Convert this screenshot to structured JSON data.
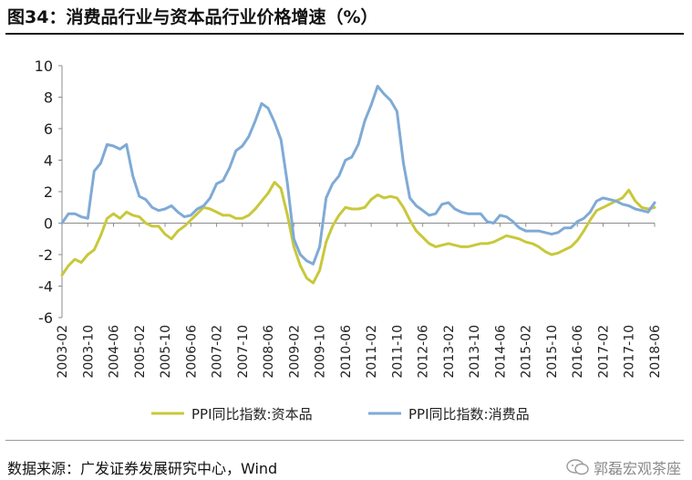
{
  "header": {
    "title": "图34：消费品行业与资本品行业价格增速（%）"
  },
  "footer": {
    "source": "数据来源：广发证券发展研究中心，Wind",
    "watermark": "郭磊宏观茶座",
    "watermark_icon": "wechat-icon"
  },
  "colors": {
    "capital": "#C8C83C",
    "consumer": "#7FAAD6",
    "axis": "#8C8C8C",
    "text": "#222222"
  },
  "chart_data": {
    "type": "line",
    "title": "",
    "xlabel": "",
    "ylabel": "",
    "ylim": [
      -6,
      10
    ],
    "yticks": [
      -6,
      -4,
      -2,
      0,
      2,
      4,
      6,
      8,
      10
    ],
    "grid": false,
    "legend": "bottom-center",
    "x_start": "2003-02",
    "x_end": "2018-06",
    "xticks": [
      "2003-02",
      "2003-10",
      "2004-06",
      "2005-02",
      "2005-10",
      "2006-06",
      "2007-02",
      "2007-10",
      "2008-06",
      "2009-02",
      "2009-10",
      "2010-06",
      "2011-02",
      "2011-10",
      "2012-06",
      "2013-02",
      "2013-10",
      "2014-06",
      "2015-02",
      "2015-10",
      "2016-06",
      "2017-02",
      "2017-10",
      "2018-06"
    ],
    "series": [
      {
        "name": "PPI同比指数:资本品",
        "color": "#C8C83C",
        "points": [
          [
            "2003-02",
            -3.3
          ],
          [
            "2003-04",
            -2.7
          ],
          [
            "2003-06",
            -2.3
          ],
          [
            "2003-08",
            -2.5
          ],
          [
            "2003-10",
            -2.0
          ],
          [
            "2003-12",
            -1.7
          ],
          [
            "2004-02",
            -0.8
          ],
          [
            "2004-04",
            0.3
          ],
          [
            "2004-06",
            0.6
          ],
          [
            "2004-08",
            0.3
          ],
          [
            "2004-10",
            0.7
          ],
          [
            "2004-12",
            0.5
          ],
          [
            "2005-02",
            0.4
          ],
          [
            "2005-04",
            0.0
          ],
          [
            "2005-06",
            -0.2
          ],
          [
            "2005-08",
            -0.2
          ],
          [
            "2005-10",
            -0.7
          ],
          [
            "2005-12",
            -1.0
          ],
          [
            "2006-02",
            -0.5
          ],
          [
            "2006-04",
            -0.2
          ],
          [
            "2006-06",
            0.2
          ],
          [
            "2006-08",
            0.6
          ],
          [
            "2006-10",
            1.0
          ],
          [
            "2006-12",
            0.9
          ],
          [
            "2007-02",
            0.7
          ],
          [
            "2007-04",
            0.5
          ],
          [
            "2007-06",
            0.5
          ],
          [
            "2007-08",
            0.3
          ],
          [
            "2007-10",
            0.3
          ],
          [
            "2007-12",
            0.5
          ],
          [
            "2008-02",
            0.9
          ],
          [
            "2008-04",
            1.4
          ],
          [
            "2008-06",
            1.9
          ],
          [
            "2008-08",
            2.6
          ],
          [
            "2008-10",
            2.2
          ],
          [
            "2008-12",
            0.5
          ],
          [
            "2009-02",
            -1.5
          ],
          [
            "2009-04",
            -2.7
          ],
          [
            "2009-06",
            -3.5
          ],
          [
            "2009-08",
            -3.8
          ],
          [
            "2009-10",
            -3.0
          ],
          [
            "2009-12",
            -1.2
          ],
          [
            "2010-02",
            -0.2
          ],
          [
            "2010-04",
            0.5
          ],
          [
            "2010-06",
            1.0
          ],
          [
            "2010-08",
            0.9
          ],
          [
            "2010-10",
            0.9
          ],
          [
            "2010-12",
            1.0
          ],
          [
            "2011-02",
            1.5
          ],
          [
            "2011-04",
            1.8
          ],
          [
            "2011-06",
            1.6
          ],
          [
            "2011-08",
            1.7
          ],
          [
            "2011-10",
            1.6
          ],
          [
            "2011-12",
            1.0
          ],
          [
            "2012-02",
            0.2
          ],
          [
            "2012-04",
            -0.5
          ],
          [
            "2012-06",
            -0.9
          ],
          [
            "2012-08",
            -1.3
          ],
          [
            "2012-10",
            -1.5
          ],
          [
            "2012-12",
            -1.4
          ],
          [
            "2013-02",
            -1.3
          ],
          [
            "2013-04",
            -1.4
          ],
          [
            "2013-06",
            -1.5
          ],
          [
            "2013-08",
            -1.5
          ],
          [
            "2013-10",
            -1.4
          ],
          [
            "2013-12",
            -1.3
          ],
          [
            "2014-02",
            -1.3
          ],
          [
            "2014-04",
            -1.2
          ],
          [
            "2014-06",
            -1.0
          ],
          [
            "2014-08",
            -0.8
          ],
          [
            "2014-10",
            -0.9
          ],
          [
            "2014-12",
            -1.0
          ],
          [
            "2015-02",
            -1.2
          ],
          [
            "2015-04",
            -1.3
          ],
          [
            "2015-06",
            -1.5
          ],
          [
            "2015-08",
            -1.8
          ],
          [
            "2015-10",
            -2.0
          ],
          [
            "2015-12",
            -1.9
          ],
          [
            "2016-02",
            -1.7
          ],
          [
            "2016-04",
            -1.5
          ],
          [
            "2016-06",
            -1.1
          ],
          [
            "2016-08",
            -0.5
          ],
          [
            "2016-10",
            0.2
          ],
          [
            "2016-12",
            0.8
          ],
          [
            "2017-02",
            1.0
          ],
          [
            "2017-04",
            1.2
          ],
          [
            "2017-06",
            1.4
          ],
          [
            "2017-08",
            1.6
          ],
          [
            "2017-10",
            2.1
          ],
          [
            "2017-12",
            1.4
          ],
          [
            "2018-02",
            1.0
          ],
          [
            "2018-04",
            0.9
          ],
          [
            "2018-06",
            1.0
          ]
        ]
      },
      {
        "name": "PPI同比指数:消费品",
        "color": "#7FAAD6",
        "points": [
          [
            "2003-02",
            0.0
          ],
          [
            "2003-04",
            0.6
          ],
          [
            "2003-06",
            0.6
          ],
          [
            "2003-08",
            0.4
          ],
          [
            "2003-10",
            0.3
          ],
          [
            "2003-12",
            3.3
          ],
          [
            "2004-02",
            3.8
          ],
          [
            "2004-04",
            5.0
          ],
          [
            "2004-06",
            4.9
          ],
          [
            "2004-08",
            4.7
          ],
          [
            "2004-10",
            5.0
          ],
          [
            "2004-12",
            3.0
          ],
          [
            "2005-02",
            1.7
          ],
          [
            "2005-04",
            1.5
          ],
          [
            "2005-06",
            1.0
          ],
          [
            "2005-08",
            0.8
          ],
          [
            "2005-10",
            0.9
          ],
          [
            "2005-12",
            1.1
          ],
          [
            "2006-02",
            0.7
          ],
          [
            "2006-04",
            0.4
          ],
          [
            "2006-06",
            0.5
          ],
          [
            "2006-08",
            0.9
          ],
          [
            "2006-10",
            1.1
          ],
          [
            "2006-12",
            1.6
          ],
          [
            "2007-02",
            2.5
          ],
          [
            "2007-04",
            2.7
          ],
          [
            "2007-06",
            3.5
          ],
          [
            "2007-08",
            4.6
          ],
          [
            "2007-10",
            4.9
          ],
          [
            "2007-12",
            5.5
          ],
          [
            "2008-02",
            6.5
          ],
          [
            "2008-04",
            7.6
          ],
          [
            "2008-06",
            7.3
          ],
          [
            "2008-08",
            6.4
          ],
          [
            "2008-10",
            5.3
          ],
          [
            "2008-12",
            2.5
          ],
          [
            "2009-02",
            -1.0
          ],
          [
            "2009-04",
            -2.0
          ],
          [
            "2009-06",
            -2.4
          ],
          [
            "2009-08",
            -2.6
          ],
          [
            "2009-10",
            -1.5
          ],
          [
            "2009-12",
            1.6
          ],
          [
            "2010-02",
            2.5
          ],
          [
            "2010-04",
            3.0
          ],
          [
            "2010-06",
            4.0
          ],
          [
            "2010-08",
            4.2
          ],
          [
            "2010-10",
            5.0
          ],
          [
            "2010-12",
            6.5
          ],
          [
            "2011-02",
            7.5
          ],
          [
            "2011-04",
            8.7
          ],
          [
            "2011-06",
            8.2
          ],
          [
            "2011-08",
            7.8
          ],
          [
            "2011-10",
            7.1
          ],
          [
            "2011-12",
            3.8
          ],
          [
            "2012-02",
            1.6
          ],
          [
            "2012-04",
            1.1
          ],
          [
            "2012-06",
            0.8
          ],
          [
            "2012-08",
            0.5
          ],
          [
            "2012-10",
            0.6
          ],
          [
            "2012-12",
            1.2
          ],
          [
            "2013-02",
            1.3
          ],
          [
            "2013-04",
            0.9
          ],
          [
            "2013-06",
            0.7
          ],
          [
            "2013-08",
            0.6
          ],
          [
            "2013-10",
            0.6
          ],
          [
            "2013-12",
            0.6
          ],
          [
            "2014-02",
            0.1
          ],
          [
            "2014-04",
            0.0
          ],
          [
            "2014-06",
            0.5
          ],
          [
            "2014-08",
            0.4
          ],
          [
            "2014-10",
            0.1
          ],
          [
            "2014-12",
            -0.3
          ],
          [
            "2015-02",
            -0.5
          ],
          [
            "2015-04",
            -0.5
          ],
          [
            "2015-06",
            -0.5
          ],
          [
            "2015-08",
            -0.6
          ],
          [
            "2015-10",
            -0.7
          ],
          [
            "2015-12",
            -0.6
          ],
          [
            "2016-02",
            -0.3
          ],
          [
            "2016-04",
            -0.3
          ],
          [
            "2016-06",
            0.1
          ],
          [
            "2016-08",
            0.3
          ],
          [
            "2016-10",
            0.7
          ],
          [
            "2016-12",
            1.4
          ],
          [
            "2017-02",
            1.6
          ],
          [
            "2017-04",
            1.5
          ],
          [
            "2017-06",
            1.4
          ],
          [
            "2017-08",
            1.2
          ],
          [
            "2017-10",
            1.1
          ],
          [
            "2017-12",
            0.9
          ],
          [
            "2018-02",
            0.8
          ],
          [
            "2018-04",
            0.7
          ],
          [
            "2018-06",
            1.3
          ]
        ]
      }
    ]
  }
}
